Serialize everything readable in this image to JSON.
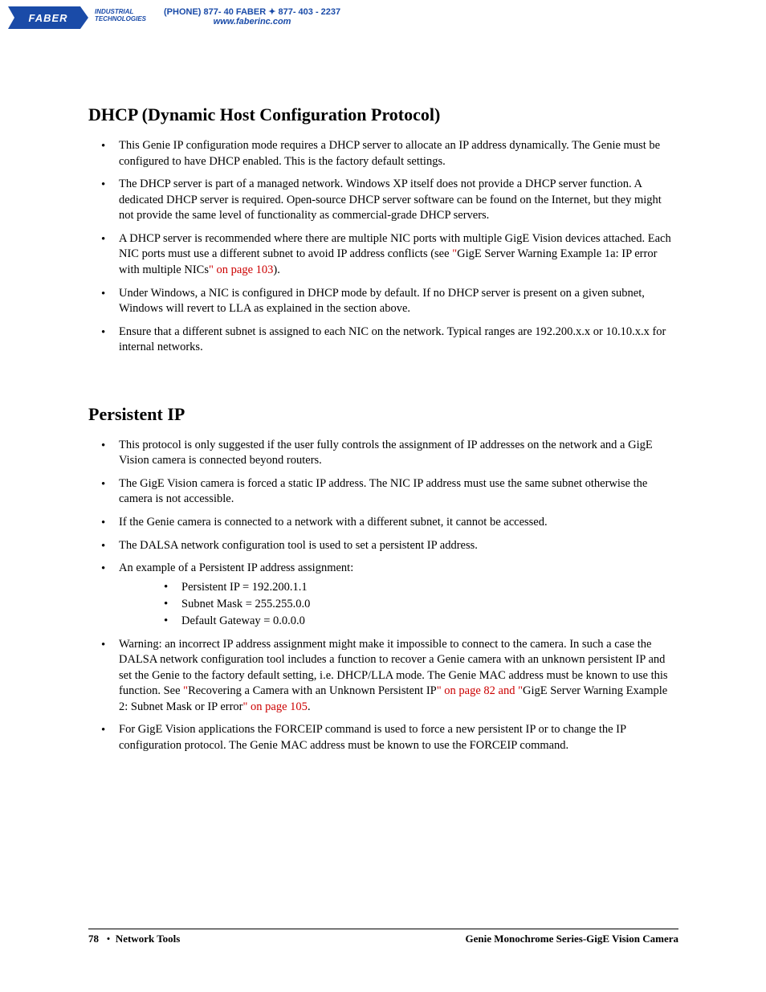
{
  "header": {
    "logo_text": "FABER",
    "logo_sub1": "INDUSTRIAL",
    "logo_sub2": "TECHNOLOGIES",
    "phone": "(PHONE) 877- 40 FABER  ✦  877- 403 - 2237",
    "website": "www.faberinc.com"
  },
  "section1": {
    "title": "DHCP (Dynamic Host Configuration Protocol)",
    "bullets": [
      "This Genie IP configuration mode requires a DHCP server to allocate an IP address dynamically. The Genie must be configured to have DHCP enabled. This is the factory default settings.",
      "The DHCP server is part of a managed network. Windows XP itself does not provide a DHCP server function. A dedicated DHCP server is required. Open-source DHCP server software can be found on the Internet, but they might not provide the same level of functionality as commercial-grade DHCP servers.",
      "Under Windows, a NIC is configured in DHCP mode by default. If no DHCP server is present on a given subnet, Windows will revert to LLA as explained in the section above.",
      "Ensure that a different subnet is assigned to each NIC on the network. Typical ranges are  192.200.x.x or 10.10.x.x for internal networks."
    ],
    "bullet3_pre": "A DHCP server is recommended where there are multiple NIC ports with multiple GigE Vision devices attached. Each NIC ports must use a different subnet to avoid IP address conflicts (see ",
    "bullet3_quote": "\"",
    "bullet3_link": "GigE Server Warning Example 1a: IP error with multiple NICs",
    "bullet3_ref": "\" on page 103",
    "bullet3_close": ")."
  },
  "section2": {
    "title": "Persistent IP",
    "bullets": [
      "This protocol is only suggested if the user fully controls the assignment of IP addresses on the network and a GigE Vision camera is connected beyond routers.",
      "The GigE Vision camera is forced a static IP address. The NIC IP address must use the same subnet otherwise the camera is not accessible.",
      "If the Genie camera is connected to a network with a different subnet, it cannot be accessed.",
      "The DALSA network configuration tool is used to set a persistent IP address.",
      "An example of a Persistent IP address assignment:",
      "For GigE Vision applications the FORCEIP command is used to force a new persistent IP or to change the IP configuration protocol. The Genie MAC address must be known to use the FORCEIP command."
    ],
    "sub": [
      "Persistent IP = 192.200.1.1",
      "Subnet Mask = 255.255.0.0",
      "Default Gateway = 0.0.0.0"
    ],
    "warn_pre": "Warning: an incorrect IP address assignment might make it impossible to connect to the camera. In such a case the DALSA network configuration tool includes a function to recover a Genie camera with an unknown persistent IP and set the Genie to the factory default setting, i.e. DHCP/LLA mode. The Genie MAC address must be known to use this function. See ",
    "warn_q1": "\"",
    "warn_link1": "Recovering a Camera with an Unknown Persistent IP",
    "warn_ref1": "\" on page 82",
    "warn_and": " and ",
    "warn_q2": "\"",
    "warn_link2": "GigE Server Warning Example 2: Subnet Mask or IP error",
    "warn_ref2": "\" on page 105",
    "warn_close": "."
  },
  "footer": {
    "page": "78",
    "bullet": "•",
    "section": "Network Tools",
    "right": "Genie Monochrome Series-GigE Vision Camera"
  }
}
